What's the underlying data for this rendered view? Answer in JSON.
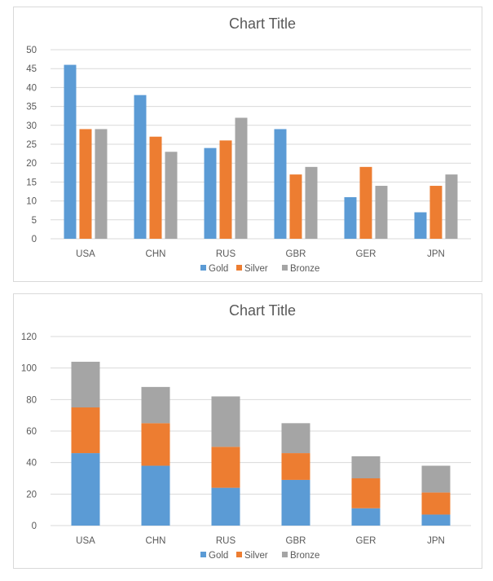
{
  "chart_data": [
    {
      "type": "bar",
      "title": "Chart Title",
      "categories": [
        "USA",
        "CHN",
        "RUS",
        "GBR",
        "GER",
        "JPN"
      ],
      "series": [
        {
          "name": "Gold",
          "values": [
            46,
            38,
            24,
            29,
            11,
            7
          ],
          "color": "#5b9bd5"
        },
        {
          "name": "Silver",
          "values": [
            29,
            27,
            26,
            17,
            19,
            14
          ],
          "color": "#ed7d31"
        },
        {
          "name": "Bronze",
          "values": [
            29,
            23,
            32,
            19,
            14,
            17
          ],
          "color": "#a5a5a5"
        }
      ],
      "ylim": [
        0,
        50
      ],
      "yticks": [
        0,
        5,
        10,
        15,
        20,
        25,
        30,
        35,
        40,
        45,
        50
      ],
      "grid": true,
      "legend": "bottom",
      "stacked": false
    },
    {
      "type": "bar",
      "title": "Chart Title",
      "categories": [
        "USA",
        "CHN",
        "RUS",
        "GBR",
        "GER",
        "JPN"
      ],
      "series": [
        {
          "name": "Gold",
          "values": [
            46,
            38,
            24,
            29,
            11,
            7
          ],
          "color": "#5b9bd5"
        },
        {
          "name": "Silver",
          "values": [
            29,
            27,
            26,
            17,
            19,
            14
          ],
          "color": "#ed7d31"
        },
        {
          "name": "Bronze",
          "values": [
            29,
            23,
            32,
            19,
            14,
            17
          ],
          "color": "#a5a5a5"
        }
      ],
      "ylim": [
        0,
        120
      ],
      "yticks": [
        0,
        20,
        40,
        60,
        80,
        100,
        120
      ],
      "grid": true,
      "legend": "bottom",
      "stacked": true
    }
  ]
}
